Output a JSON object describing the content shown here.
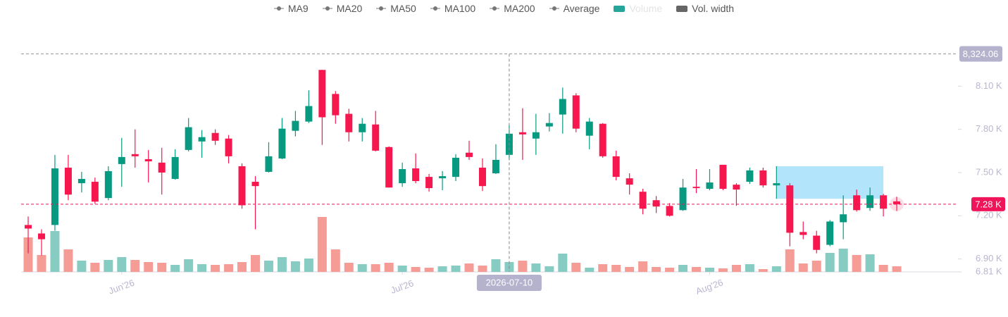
{
  "chart_data": {
    "type": "candlestick",
    "legend": [
      {
        "name": "MA9",
        "color": "#777777",
        "kind": "line"
      },
      {
        "name": "MA20",
        "color": "#777777",
        "kind": "line"
      },
      {
        "name": "MA50",
        "color": "#777777",
        "kind": "line"
      },
      {
        "name": "MA100",
        "color": "#777777",
        "kind": "line"
      },
      {
        "name": "MA200",
        "color": "#777777",
        "kind": "line"
      },
      {
        "name": "Average",
        "color": "#777777",
        "kind": "line"
      },
      {
        "name": "Volume",
        "color": "#26a69a",
        "kind": "box",
        "hidden": true
      },
      {
        "name": "Vol. width",
        "color": "#666666",
        "kind": "box"
      }
    ],
    "up_color": "#089981",
    "down_color": "#f7174f",
    "volume_up_color": "#86ccc2",
    "volume_down_color": "#f59c97",
    "open": [
      7136,
      7077,
      7136,
      7534,
      7426,
      7436,
      7323,
      7559,
      7628,
      7593,
      7569,
      7456,
      7657,
      7716,
      7775,
      7736,
      7544,
      7436,
      7505,
      7598,
      7790,
      7854,
      8213,
      8046,
      7908,
      7780,
      7834,
      7677,
      7426,
      7529,
      7470,
      7460,
      7470,
      7638,
      7534,
      7495,
      7623,
      7780,
      7736,
      7820,
      7903,
      8036,
      7756,
      7839,
      7613,
      7460,
      7367,
      7308,
      7268,
      7239,
      7401,
      7387,
      7554,
      7416,
      7436,
      7515,
      7411,
      7411,
      7087,
      7062,
      6998,
      7155,
      7342,
      7254,
      7342,
      7300
    ],
    "high": [
      7195,
      7106,
      7623,
      7623,
      7505,
      7465,
      7544,
      7741,
      7800,
      7657,
      7672,
      7662,
      7879,
      7795,
      7800,
      7761,
      7564,
      7475,
      7711,
      7879,
      7928,
      8071,
      8213,
      8066,
      7943,
      7879,
      7928,
      7682,
      7569,
      7633,
      7490,
      7510,
      7628,
      7721,
      7598,
      7697,
      7829,
      7947,
      7908,
      7913,
      8090,
      8051,
      7879,
      7844,
      7652,
      7495,
      7387,
      7337,
      7288,
      7456,
      7524,
      7524,
      7554,
      7426,
      7534,
      7534,
      7544,
      7426,
      7160,
      7096,
      7170,
      7342,
      7382,
      7396,
      7352,
      7332
    ],
    "low": [
      6939,
      6924,
      7096,
      7308,
      7362,
      7283,
      7308,
      7401,
      7534,
      7431,
      7347,
      7451,
      7647,
      7603,
      7692,
      7564,
      7249,
      7106,
      7500,
      7593,
      7751,
      7844,
      7692,
      7839,
      7716,
      7716,
      7647,
      7396,
      7401,
      7426,
      7367,
      7377,
      7441,
      7588,
      7372,
      7490,
      7588,
      7588,
      7623,
      7785,
      7770,
      7780,
      7662,
      7603,
      7446,
      7347,
      7210,
      7219,
      7195,
      7234,
      7357,
      7377,
      7377,
      7269,
      7421,
      7396,
      7318,
      6988,
      7037,
      6939,
      6988,
      7037,
      7229,
      7234,
      7195,
      7234
    ],
    "close": [
      7111,
      7037,
      7529,
      7347,
      7456,
      7298,
      7510,
      7608,
      7613,
      7578,
      7500,
      7608,
      7815,
      7746,
      7721,
      7613,
      7273,
      7406,
      7613,
      7805,
      7859,
      7962,
      7884,
      7898,
      7780,
      7839,
      7652,
      7396,
      7524,
      7441,
      7392,
      7475,
      7603,
      7608,
      7406,
      7588,
      7770,
      7765,
      7780,
      7844,
      8011,
      7805,
      7854,
      7613,
      7470,
      7416,
      7249,
      7264,
      7200,
      7396,
      7392,
      7431,
      7387,
      7382,
      7515,
      7411,
      7426,
      7082,
      7067,
      6963,
      7160,
      7210,
      7239,
      7342,
      7249,
      7280
    ],
    "volume": [
      49,
      24,
      58,
      32,
      16,
      13,
      17,
      21,
      17,
      14,
      13,
      10,
      18,
      11,
      10,
      11,
      14,
      24,
      16,
      21,
      15,
      19,
      78,
      32,
      13,
      11,
      11,
      13,
      9,
      7,
      6,
      8,
      9,
      12,
      9,
      18,
      14,
      16,
      12,
      8,
      26,
      13,
      6,
      11,
      10,
      7,
      15,
      7,
      6,
      10,
      7,
      6,
      5,
      10,
      11,
      4,
      8,
      32,
      12,
      16,
      27,
      33,
      24,
      25,
      10,
      8
    ],
    "volume_lim": [
      0,
      100
    ],
    "ylim": [
      6810,
      8400
    ],
    "yticks": [
      {
        "value": 6810,
        "label": "6.81 K"
      },
      {
        "value": 6900,
        "label": "6.90 K"
      },
      {
        "value": 7200,
        "label": "7.20 K"
      },
      {
        "value": 7500,
        "label": "7.50 K"
      },
      {
        "value": 7800,
        "label": "7.80 K"
      },
      {
        "value": 8100,
        "label": "8.10 K"
      }
    ],
    "xticks": [
      {
        "value": 7,
        "label": "Jun'26"
      },
      {
        "value": 28,
        "label": "Jul'26"
      },
      {
        "value": 51,
        "label": "Aug'26"
      }
    ],
    "zone": {
      "from": 56,
      "to": 64,
      "high": 7544,
      "low": 7318,
      "color": "#aee3fb"
    },
    "last_price": {
      "value": 7280,
      "label": "7.28 K",
      "color": "#f0145a"
    },
    "crosshair": {
      "x": 36,
      "x_label": "2026-07-10",
      "y": 8324.06,
      "y_label": "8,324.06"
    }
  }
}
